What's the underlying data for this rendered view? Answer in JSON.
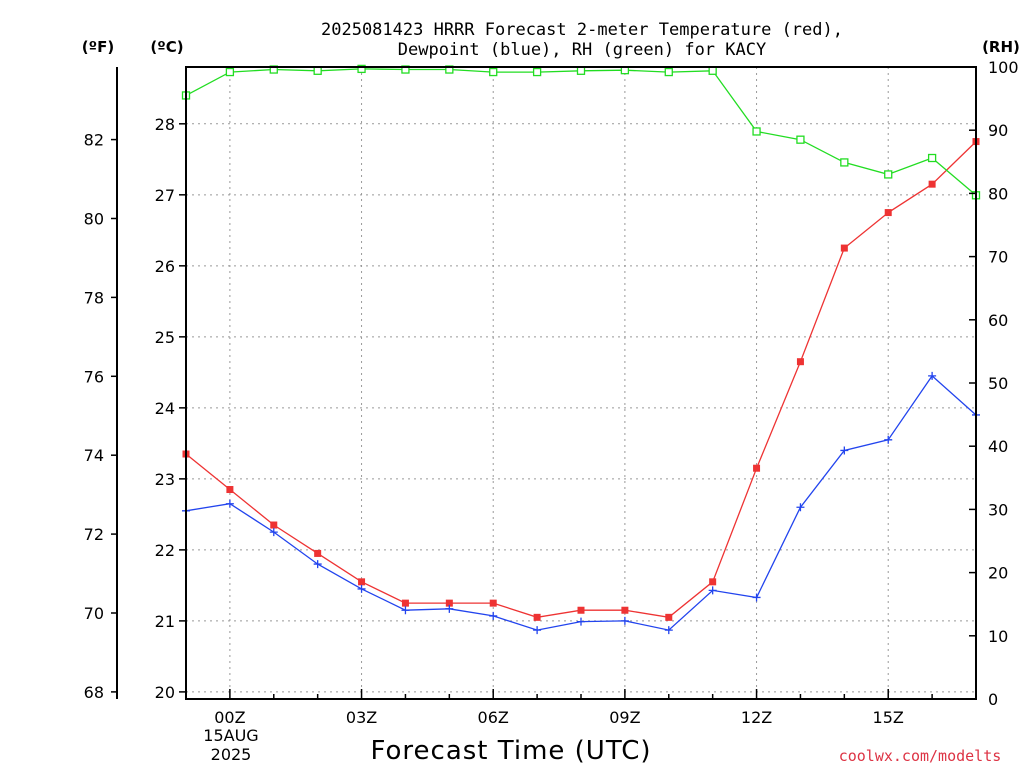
{
  "chart_data": {
    "type": "line",
    "title_line1": "2025081423 HRRR Forecast 2-meter Temperature (red),",
    "title_line2": "Dewpoint (blue), RH (green) for KACY",
    "xlabel": "Forecast Time (UTC)",
    "credit": "coolwx.com/modelts",
    "unit_f": "(ºF)",
    "unit_c": "(ºC)",
    "unit_rh": "(RH)",
    "x_hours": [
      -1,
      0,
      1,
      2,
      3,
      4,
      5,
      6,
      7,
      8,
      9,
      10,
      11,
      12,
      13,
      14,
      15,
      16,
      17
    ],
    "x_ticks": [
      "00Z",
      "03Z",
      "06Z",
      "09Z",
      "12Z",
      "15Z"
    ],
    "x_date_lines": [
      "15AUG",
      "2025"
    ],
    "xlim": [
      -1,
      17
    ],
    "c_ticks": [
      20,
      21,
      22,
      23,
      24,
      25,
      26,
      27,
      28
    ],
    "f_ticks": [
      68,
      70,
      72,
      74,
      76,
      78,
      80,
      82
    ],
    "rh_ticks": [
      0,
      10,
      20,
      30,
      40,
      50,
      60,
      70,
      80,
      90,
      100
    ],
    "ylim_c": [
      19.9,
      28.8
    ],
    "ylim_rh": [
      0,
      100
    ],
    "series": [
      {
        "name": "Temperature",
        "color": "#ee3333",
        "marker": "filled-square",
        "axis": "C",
        "values": [
          23.35,
          22.85,
          22.35,
          21.95,
          21.55,
          21.25,
          21.25,
          21.25,
          21.05,
          21.15,
          21.15,
          21.05,
          21.55,
          23.15,
          24.65,
          26.25,
          26.75,
          27.15,
          27.75
        ]
      },
      {
        "name": "Dewpoint",
        "color": "#2244ee",
        "marker": "plus",
        "axis": "C",
        "values": [
          22.55,
          22.65,
          22.25,
          21.8,
          21.45,
          21.15,
          21.17,
          21.07,
          20.87,
          20.99,
          21.0,
          20.87,
          21.43,
          21.33,
          22.6,
          23.4,
          23.55,
          24.45,
          23.9
        ]
      },
      {
        "name": "RH",
        "color": "#22dd22",
        "marker": "open-square",
        "axis": "RH",
        "values": [
          95.5,
          99.2,
          99.6,
          99.4,
          99.7,
          99.6,
          99.6,
          99.2,
          99.2,
          99.4,
          99.5,
          99.2,
          99.4,
          89.8,
          88.5,
          84.9,
          83.0,
          85.6,
          79.7
        ]
      }
    ]
  }
}
